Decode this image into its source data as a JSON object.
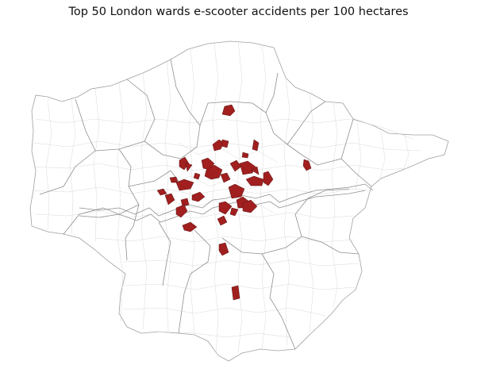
{
  "title": "Top 50 London wards e-scooter accidents per 100 hectares",
  "colors": {
    "highlight": "#a11f1f",
    "background_ward": "#ffffff",
    "ward_border": "#d9d9d9",
    "borough_border": "#8f8f8f"
  },
  "map": {
    "type": "choropleth",
    "region": "London",
    "unit": "wards",
    "highlighted_count": 50
  }
}
